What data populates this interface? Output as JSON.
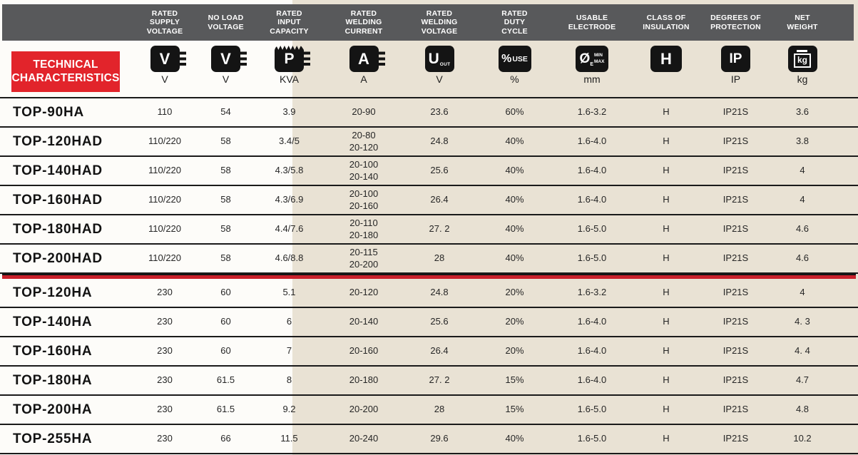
{
  "section_title": "TECHNICAL\nCHARACTERISTICS",
  "colors": {
    "header_band": "#58595b",
    "accent_red": "#e2242b",
    "divider_red": "#c9202b",
    "icon_black": "#141414",
    "paper_beige": "#e9e2d4",
    "paper_white": "#fdfcf9"
  },
  "columns": [
    {
      "id": "model",
      "header": "",
      "unit": ""
    },
    {
      "id": "rated-supply-voltage",
      "header": "RATED\nSUPPLY\nVOLTAGE",
      "unit": "V"
    },
    {
      "id": "no-load-voltage",
      "header": "NO LOAD\nVOLTAGE",
      "unit": "V"
    },
    {
      "id": "rated-input-capacity",
      "header": "RATED\nINPUT\nCAPACITY",
      "unit": "KVA"
    },
    {
      "id": "rated-welding-current",
      "header": "RATED\nWELDING\nCURRENT",
      "unit": "A"
    },
    {
      "id": "rated-welding-voltage",
      "header": "RATED\nWELDING\nVOLTAGE",
      "unit": "V"
    },
    {
      "id": "rated-duty-cycle",
      "header": "RATED\nDUTY\nCYCLE",
      "unit": "%"
    },
    {
      "id": "usable-electrode",
      "header": "USABLE\nELECTRODE",
      "unit": "mm"
    },
    {
      "id": "class-of-insulation",
      "header": "CLASS OF\nINSULATION",
      "unit": ""
    },
    {
      "id": "degrees-of-protection",
      "header": "DEGREES OF\nPROTECTION",
      "unit": "IP"
    },
    {
      "id": "net-weight",
      "header": "NET\nWEIGHT",
      "unit": "kg"
    }
  ],
  "icons": {
    "supply_voltage": {
      "letter": "V"
    },
    "no_load_voltage": {
      "letter": "V"
    },
    "input_capacity": {
      "letter": "P"
    },
    "welding_current": {
      "letter": "A"
    },
    "welding_voltage": {
      "letter": "U",
      "sub": "OUT"
    },
    "duty_cycle": {
      "symbol": "%",
      "label": "USE"
    },
    "electrode": {
      "symbol": "Ø",
      "sub": "E",
      "min": "MIN",
      "max": "MAX"
    },
    "insulation": {
      "letter": "H"
    },
    "protection": {
      "letter": "IP"
    },
    "weight": {
      "label": "kg"
    }
  },
  "sections": [
    {
      "rows": [
        {
          "model": "TOP-90HA",
          "values": [
            "110",
            "54",
            "3.9",
            "20-90",
            "23.6",
            "60%",
            "1.6-3.2",
            "H",
            "IP21S",
            "3.6"
          ]
        },
        {
          "model": "TOP-120HAD",
          "values": [
            "110/220",
            "58",
            "3.4/5",
            "20-80\n20-120",
            "24.8",
            "40%",
            "1.6-4.0",
            "H",
            "IP21S",
            "3.8"
          ]
        },
        {
          "model": "TOP-140HAD",
          "values": [
            "110/220",
            "58",
            "4.3/5.8",
            "20-100\n20-140",
            "25.6",
            "40%",
            "1.6-4.0",
            "H",
            "IP21S",
            "4"
          ]
        },
        {
          "model": "TOP-160HAD",
          "values": [
            "110/220",
            "58",
            "4.3/6.9",
            "20-100\n20-160",
            "26.4",
            "40%",
            "1.6-4.0",
            "H",
            "IP21S",
            "4"
          ]
        },
        {
          "model": "TOP-180HAD",
          "values": [
            "110/220",
            "58",
            "4.4/7.6",
            "20-110\n20-180",
            "27. 2",
            "40%",
            "1.6-5.0",
            "H",
            "IP21S",
            "4.6"
          ]
        },
        {
          "model": "TOP-200HAD",
          "values": [
            "110/220",
            "58",
            "4.6/8.8",
            "20-115\n20-200",
            "28",
            "40%",
            "1.6-5.0",
            "H",
            "IP21S",
            "4.6"
          ]
        }
      ]
    },
    {
      "rows": [
        {
          "model": "TOP-120HA",
          "values": [
            "230",
            "60",
            "5.1",
            "20-120",
            "24.8",
            "20%",
            "1.6-3.2",
            "H",
            "IP21S",
            "4"
          ]
        },
        {
          "model": "TOP-140HA",
          "values": [
            "230",
            "60",
            "6",
            "20-140",
            "25.6",
            "20%",
            "1.6-4.0",
            "H",
            "IP21S",
            "4. 3"
          ]
        },
        {
          "model": "TOP-160HA",
          "values": [
            "230",
            "60",
            "7",
            "20-160",
            "26.4",
            "20%",
            "1.6-4.0",
            "H",
            "IP21S",
            "4. 4"
          ]
        },
        {
          "model": "TOP-180HA",
          "values": [
            "230",
            "61.5",
            "8",
            "20-180",
            "27. 2",
            "15%",
            "1.6-4.0",
            "H",
            "IP21S",
            "4.7"
          ]
        },
        {
          "model": "TOP-200HA",
          "values": [
            "230",
            "61.5",
            "9.2",
            "20-200",
            "28",
            "15%",
            "1.6-5.0",
            "H",
            "IP21S",
            "4.8"
          ]
        },
        {
          "model": "TOP-255HA",
          "values": [
            "230",
            "66",
            "11.5",
            "20-240",
            "29.6",
            "40%",
            "1.6-5.0",
            "H",
            "IP21S",
            "10.2"
          ]
        }
      ]
    }
  ]
}
